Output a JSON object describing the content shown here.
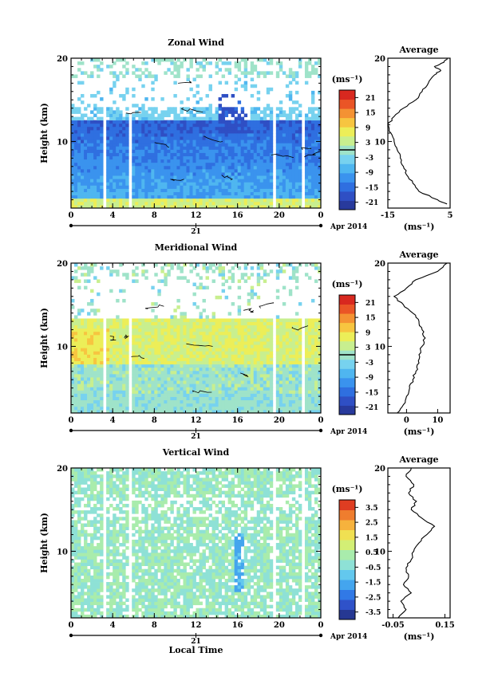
{
  "chart_data": [
    {
      "type": "heatmap",
      "title": "Zonal Wind",
      "ylabel": "Height (km)",
      "xlim": [
        0,
        24
      ],
      "ylim": [
        2,
        20
      ],
      "x_ticks": [
        "0",
        "4",
        "8",
        "12",
        "16",
        "20",
        "0"
      ],
      "y_ticks": [
        "10",
        "20"
      ],
      "date_day": "21",
      "date_label": "Apr 2014",
      "colorbar": {
        "unit": "(ms⁻¹)",
        "min": -24,
        "max": 24,
        "ticks": [
          "21",
          "15",
          "9",
          "3",
          "-3",
          "-9",
          "-15",
          "-21"
        ],
        "zero_line": 0
      },
      "profile": {
        "title": "Average",
        "xlabel": "(ms⁻¹)",
        "x_ticks": [
          "-15",
          "5"
        ],
        "xlim": [
          -15,
          5
        ],
        "heights": [
          2.5,
          3,
          4,
          5,
          6,
          7,
          8,
          9,
          10,
          11,
          12,
          13,
          14,
          15,
          16,
          17,
          18,
          18.5,
          19,
          19.5,
          20
        ],
        "values": [
          4,
          1,
          -5,
          -7,
          -9,
          -10,
          -11,
          -12,
          -13,
          -14,
          -15,
          -13,
          -10,
          -6,
          -4,
          -2,
          0,
          2,
          0,
          3,
          4
        ]
      }
    },
    {
      "type": "heatmap",
      "title": "Meridional Wind",
      "ylabel": "Height (km)",
      "xlim": [
        0,
        24
      ],
      "ylim": [
        2,
        20
      ],
      "x_ticks": [
        "0",
        "4",
        "8",
        "12",
        "16",
        "20",
        "0"
      ],
      "y_ticks": [
        "10",
        "20"
      ],
      "date_day": "21",
      "date_label": "Apr 2014",
      "colorbar": {
        "unit": "(ms⁻¹)",
        "min": -24,
        "max": 24,
        "ticks": [
          "21",
          "15",
          "9",
          "3",
          "-3",
          "-9",
          "-15",
          "-21"
        ],
        "zero_line": 0
      },
      "profile": {
        "title": "Average",
        "xlabel": "(ms⁻¹)",
        "x_ticks": [
          "0",
          "10"
        ],
        "xlim": [
          -6,
          14
        ],
        "heights": [
          2,
          3,
          4,
          5,
          6,
          7,
          8,
          9,
          10,
          11,
          12,
          13,
          14,
          15,
          16,
          17,
          18,
          19,
          20
        ],
        "values": [
          -3,
          -1,
          0,
          1,
          2,
          3,
          4,
          4,
          5,
          6,
          5,
          4,
          2,
          -1,
          -4,
          0,
          3,
          10,
          13
        ]
      }
    },
    {
      "type": "heatmap",
      "title": "Vertical Wind",
      "ylabel": "Height (km)",
      "xlabel": "Local Time",
      "xlim": [
        0,
        24
      ],
      "ylim": [
        2,
        20
      ],
      "x_ticks": [
        "0",
        "4",
        "8",
        "12",
        "16",
        "20",
        "0"
      ],
      "y_ticks": [
        "10",
        "20"
      ],
      "date_day": "21",
      "date_label": "Apr 2014",
      "colorbar": {
        "unit": "(ms⁻¹)",
        "min": -4,
        "max": 4,
        "ticks": [
          "3.5",
          "2.5",
          "1.5",
          "0.5",
          "-0.5",
          "-1.5",
          "-2.5",
          "-3.5"
        ]
      },
      "profile": {
        "title": "Average",
        "xlabel": "(ms⁻¹)",
        "x_ticks": [
          "-0.05",
          "0.15"
        ],
        "xlim": [
          -0.07,
          0.17
        ],
        "heights": [
          2,
          3,
          4,
          5,
          6,
          7,
          8,
          9,
          10,
          11,
          12,
          13,
          14,
          15,
          16,
          17,
          18,
          19,
          20
        ],
        "values": [
          -0.03,
          0.0,
          -0.02,
          0.02,
          -0.01,
          0.01,
          0.0,
          0.02,
          0.03,
          0.05,
          0.08,
          0.11,
          0.06,
          0.02,
          0.04,
          0.01,
          0.03,
          0.0,
          0.02
        ]
      }
    }
  ]
}
